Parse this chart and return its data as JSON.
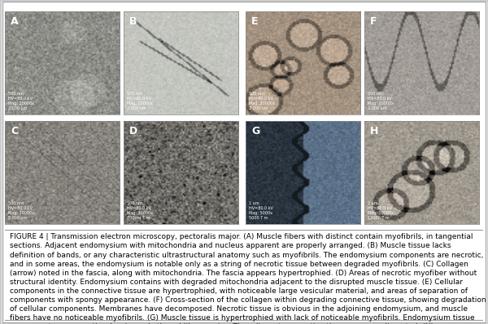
{
  "figure_number": "FIGURE 4",
  "caption_bold": "FIGURE 4 |",
  "caption_text": " Transmission electron microscopy, pectoralis major. (A) Muscle fibers with distinct contain myofibrils, in tangential sections. Adjacent endomysium with mitochondria and nucleus apparent are properly arranged. (B) Muscle tissue lacks definition of bands, or any characteristic ultrastructural anatomy such as myofibrils. The endomysium components are necrotic, and in some areas, the endomysium is notable only as a string of necrotic tissue between degraded myofibrils. (C) Collagen (arrow) noted in the fascia, along with mitochondria. The fascia appears hypertrophied. (D) Areas of necrotic myofiber without structural identity. Endomysium contains with degraded mitochondria adjacent to the disrupted muscle tissue. (E) Cellular components in the connective tissue are hypertrophied, with noticeable large vesicular material, and areas of separation of components with spongy appearance. (F) Cross-section of the collagen within degrading connective tissue, showing degradation of cellular components. Membranes have decomposed. Necrotic tissue is obvious in the adjoining endomysium, and muscle fibers have no noticeable myofibrils. (G) Muscle tissue is hypertrophied with lack of noticeable myofibrils. Endomysium tissue components are necrotic, showing only thread-like remains. The adjacent connective tissue appears disrupted. (H) Hypertrophied muscle tissue with no noticeable myofibrils. Adjacent collagen in cross-section with disrupted cellular debris. *Hypertrophied mitochondrion.",
  "labels": [
    "A",
    "B",
    "E",
    "F",
    "C",
    "D",
    "G",
    "H"
  ],
  "top_row_labels": [
    "A",
    "B",
    "E",
    "F"
  ],
  "bottom_row_labels": [
    "C",
    "D",
    "G",
    "H"
  ],
  "bg_color": "#ffffff",
  "border_color": "#cccccc",
  "caption_fontsize": 6.5,
  "label_fontsize": 9,
  "figure_width": 6.0,
  "figure_height": 3.99,
  "img_bg_colors": {
    "A": "#b0b0a8",
    "B": "#c8ccc0",
    "E": "#c8b090",
    "F": "#b8b0a0",
    "C": "#a8a898",
    "D": "#909080",
    "G": "#607088",
    "H": "#b8a888"
  },
  "panel_border": "#888888"
}
